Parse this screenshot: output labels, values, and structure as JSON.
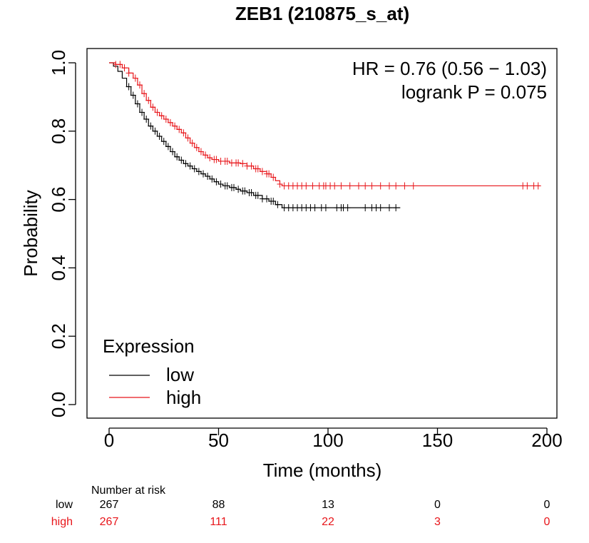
{
  "chart_data": {
    "type": "line",
    "title": "ZEB1 (210875_s_at)",
    "xlabel": "Time (months)",
    "ylabel": "Probability",
    "xlim": [
      0,
      200
    ],
    "ylim": [
      0,
      1
    ],
    "x_ticks": [
      "0",
      "50",
      "100",
      "150",
      "200"
    ],
    "y_ticks": [
      "0.0",
      "0.2",
      "0.4",
      "0.6",
      "0.8",
      "1.0"
    ],
    "hr_text": "HR = 0.76 (0.56 − 1.03)",
    "logrank_text": "logrank P = 0.075",
    "legend": {
      "title": "Expression",
      "position": "bottom-left"
    },
    "series": [
      {
        "name": "low",
        "color": "#000000",
        "steps": [
          [
            0,
            1.0
          ],
          [
            2,
            0.99
          ],
          [
            4,
            0.975
          ],
          [
            6,
            0.955
          ],
          [
            8,
            0.93
          ],
          [
            10,
            0.905
          ],
          [
            12,
            0.88
          ],
          [
            14,
            0.855
          ],
          [
            16,
            0.835
          ],
          [
            18,
            0.815
          ],
          [
            20,
            0.8
          ],
          [
            22,
            0.785
          ],
          [
            24,
            0.77
          ],
          [
            26,
            0.755
          ],
          [
            28,
            0.74
          ],
          [
            30,
            0.725
          ],
          [
            32,
            0.715
          ],
          [
            34,
            0.705
          ],
          [
            36,
            0.698
          ],
          [
            38,
            0.69
          ],
          [
            40,
            0.682
          ],
          [
            42,
            0.675
          ],
          [
            44,
            0.668
          ],
          [
            46,
            0.66
          ],
          [
            48,
            0.652
          ],
          [
            50,
            0.645
          ],
          [
            52,
            0.64
          ],
          [
            55,
            0.635
          ],
          [
            58,
            0.63
          ],
          [
            60,
            0.625
          ],
          [
            63,
            0.62
          ],
          [
            66,
            0.612
          ],
          [
            70,
            0.602
          ],
          [
            73,
            0.595
          ],
          [
            76,
            0.585
          ],
          [
            79,
            0.576
          ],
          [
            133,
            0.576
          ]
        ],
        "censor_x": [
          9,
          11,
          13,
          15,
          17,
          19,
          21,
          23,
          25,
          27,
          29,
          31,
          33,
          35,
          37,
          39,
          41,
          43,
          45,
          47,
          49,
          51,
          53,
          54,
          56,
          57,
          59,
          61,
          62,
          64,
          65,
          67,
          68,
          70,
          72,
          74,
          75,
          77,
          80,
          82,
          84,
          86,
          88,
          90,
          92,
          94,
          97,
          99,
          104,
          106,
          107,
          109,
          117,
          120,
          122,
          124,
          128,
          131
        ]
      },
      {
        "name": "high",
        "color": "#e8161b",
        "steps": [
          [
            0,
            1.0
          ],
          [
            3,
            0.995
          ],
          [
            6,
            0.985
          ],
          [
            9,
            0.97
          ],
          [
            11,
            0.955
          ],
          [
            13,
            0.935
          ],
          [
            15,
            0.91
          ],
          [
            17,
            0.89
          ],
          [
            19,
            0.87
          ],
          [
            21,
            0.855
          ],
          [
            23,
            0.845
          ],
          [
            25,
            0.835
          ],
          [
            27,
            0.825
          ],
          [
            29,
            0.815
          ],
          [
            31,
            0.805
          ],
          [
            33,
            0.795
          ],
          [
            35,
            0.78
          ],
          [
            37,
            0.765
          ],
          [
            39,
            0.752
          ],
          [
            41,
            0.74
          ],
          [
            43,
            0.73
          ],
          [
            45,
            0.722
          ],
          [
            47,
            0.717
          ],
          [
            50,
            0.712
          ],
          [
            55,
            0.707
          ],
          [
            60,
            0.705
          ],
          [
            63,
            0.698
          ],
          [
            66,
            0.69
          ],
          [
            69,
            0.682
          ],
          [
            72,
            0.675
          ],
          [
            74,
            0.665
          ],
          [
            76,
            0.655
          ],
          [
            78,
            0.645
          ],
          [
            79,
            0.64
          ],
          [
            197,
            0.64
          ]
        ],
        "censor_x": [
          3,
          5,
          7,
          9,
          12,
          14,
          16,
          18,
          20,
          22,
          24,
          26,
          28,
          30,
          32,
          34,
          36,
          38,
          40,
          42,
          44,
          46,
          48,
          49,
          51,
          53,
          54,
          56,
          58,
          59,
          61,
          63,
          65,
          67,
          68,
          70,
          72,
          73,
          75,
          78,
          80,
          82,
          84,
          86,
          88,
          90,
          93,
          96,
          98,
          99,
          101,
          103,
          106,
          110,
          114,
          117,
          120,
          124,
          128,
          131,
          135,
          139,
          189,
          191,
          194,
          196
        ]
      }
    ],
    "risk_table": {
      "title": "Number at risk",
      "times": [
        0,
        50,
        100,
        150,
        200
      ],
      "rows": [
        {
          "label": "low",
          "color": "#000000",
          "values": [
            "267",
            "88",
            "13",
            "0",
            "0"
          ]
        },
        {
          "label": "high",
          "color": "#e8161b",
          "values": [
            "267",
            "111",
            "22",
            "3",
            "0"
          ]
        }
      ]
    },
    "grid": false
  }
}
